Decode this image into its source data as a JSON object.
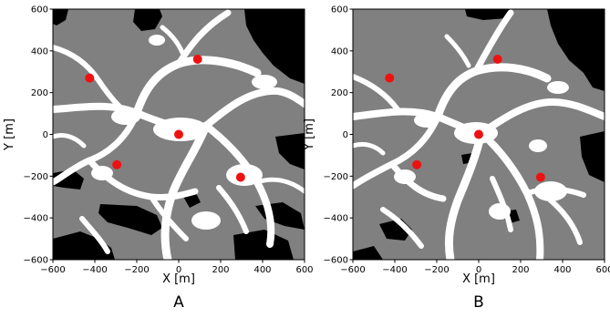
{
  "colors": {
    "free": "#ffffff",
    "terrain": "#808080",
    "obstacle": "#000000",
    "marker": "#ee1111"
  },
  "chart_data": [
    {
      "type": "scatter",
      "panel_label": "A",
      "xlabel": "X [m]",
      "ylabel": "Y [m]",
      "xlim": [
        -600,
        600
      ],
      "ylim": [
        -600,
        600
      ],
      "xticks": [
        -600,
        -400,
        -200,
        0,
        200,
        400,
        600
      ],
      "yticks": [
        -600,
        -400,
        -200,
        0,
        200,
        400,
        600
      ],
      "grid": false,
      "background": "occupancy map (gray terrain, white free corridors, black obstacles)",
      "points": [
        {
          "x": -425,
          "y": 270
        },
        {
          "x": 90,
          "y": 360
        },
        {
          "x": 0,
          "y": 0
        },
        {
          "x": -295,
          "y": -145
        },
        {
          "x": 295,
          "y": -205
        }
      ]
    },
    {
      "type": "scatter",
      "panel_label": "B",
      "xlabel": "X [m]",
      "ylabel": "Y [m]",
      "xlim": [
        -600,
        600
      ],
      "ylim": [
        -600,
        600
      ],
      "xticks": [
        -600,
        -400,
        -200,
        0,
        200,
        400,
        600
      ],
      "yticks": [
        -600,
        -400,
        -200,
        0,
        200,
        400,
        600
      ],
      "grid": false,
      "background": "occupancy map (gray terrain, white free corridors, black obstacles)",
      "points": [
        {
          "x": -425,
          "y": 270
        },
        {
          "x": 90,
          "y": 360
        },
        {
          "x": 0,
          "y": 0
        },
        {
          "x": -295,
          "y": -145
        },
        {
          "x": 295,
          "y": -205
        }
      ]
    }
  ]
}
